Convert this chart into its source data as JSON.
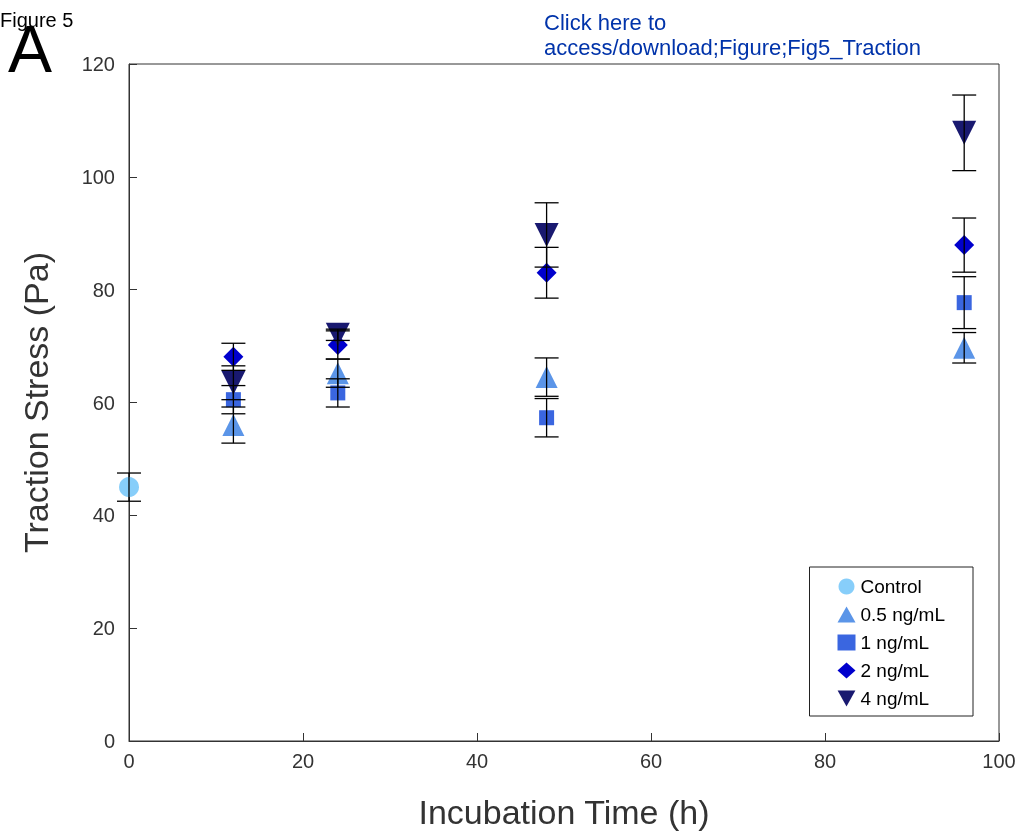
{
  "chart_data": {
    "type": "scatter",
    "xlabel": "Incubation Time (h)",
    "ylabel": "Traction Stress (Pa)",
    "annotations": [
      "Figure 5",
      "A",
      "Click here to\naccess/download;Figure;Fig5_Traction"
    ],
    "xlim": [
      0,
      100
    ],
    "xticks": [
      0,
      20,
      40,
      60,
      80,
      100
    ],
    "ylim": [
      0,
      120
    ],
    "yticks": [
      0,
      20,
      40,
      60,
      80,
      100,
      120
    ],
    "grid": false,
    "legend": "bottom right",
    "series": [
      {
        "name": "Control",
        "color": "#87cefa",
        "marker": "circle",
        "x": [
          0
        ],
        "values": [
          45
        ],
        "errors": [
          2.5
        ]
      },
      {
        "name": "0.5 ng/mL",
        "color": "#5b95e8",
        "marker": "triangle",
        "x": [
          12,
          24,
          48,
          96
        ],
        "values": [
          56,
          65.2,
          64.5,
          69.7
        ],
        "errors": [
          3.2,
          2.5,
          3.4,
          2.7
        ]
      },
      {
        "name": "1 ng/mL",
        "color": "#3a66e0",
        "marker": "square",
        "x": [
          12,
          24,
          48,
          96
        ],
        "values": [
          60.5,
          61.7,
          57.3,
          77.7
        ],
        "errors": [
          2.5,
          2.5,
          3.4,
          4.6
        ]
      },
      {
        "name": "2 ng/mL",
        "color": "#0000cd",
        "marker": "diamond",
        "x": [
          12,
          24,
          48,
          96
        ],
        "values": [
          68.1,
          70.2,
          83,
          87.9
        ],
        "errors": [
          2.4,
          2.5,
          4.5,
          4.8
        ]
      },
      {
        "name": "4 ng/mL",
        "color": "#191970",
        "marker": "triangle_down",
        "x": [
          12,
          24,
          48,
          96
        ],
        "values": [
          63.5,
          72,
          89.7,
          107.8
        ],
        "errors": [
          3,
          1,
          5.7,
          6.7
        ]
      }
    ]
  }
}
